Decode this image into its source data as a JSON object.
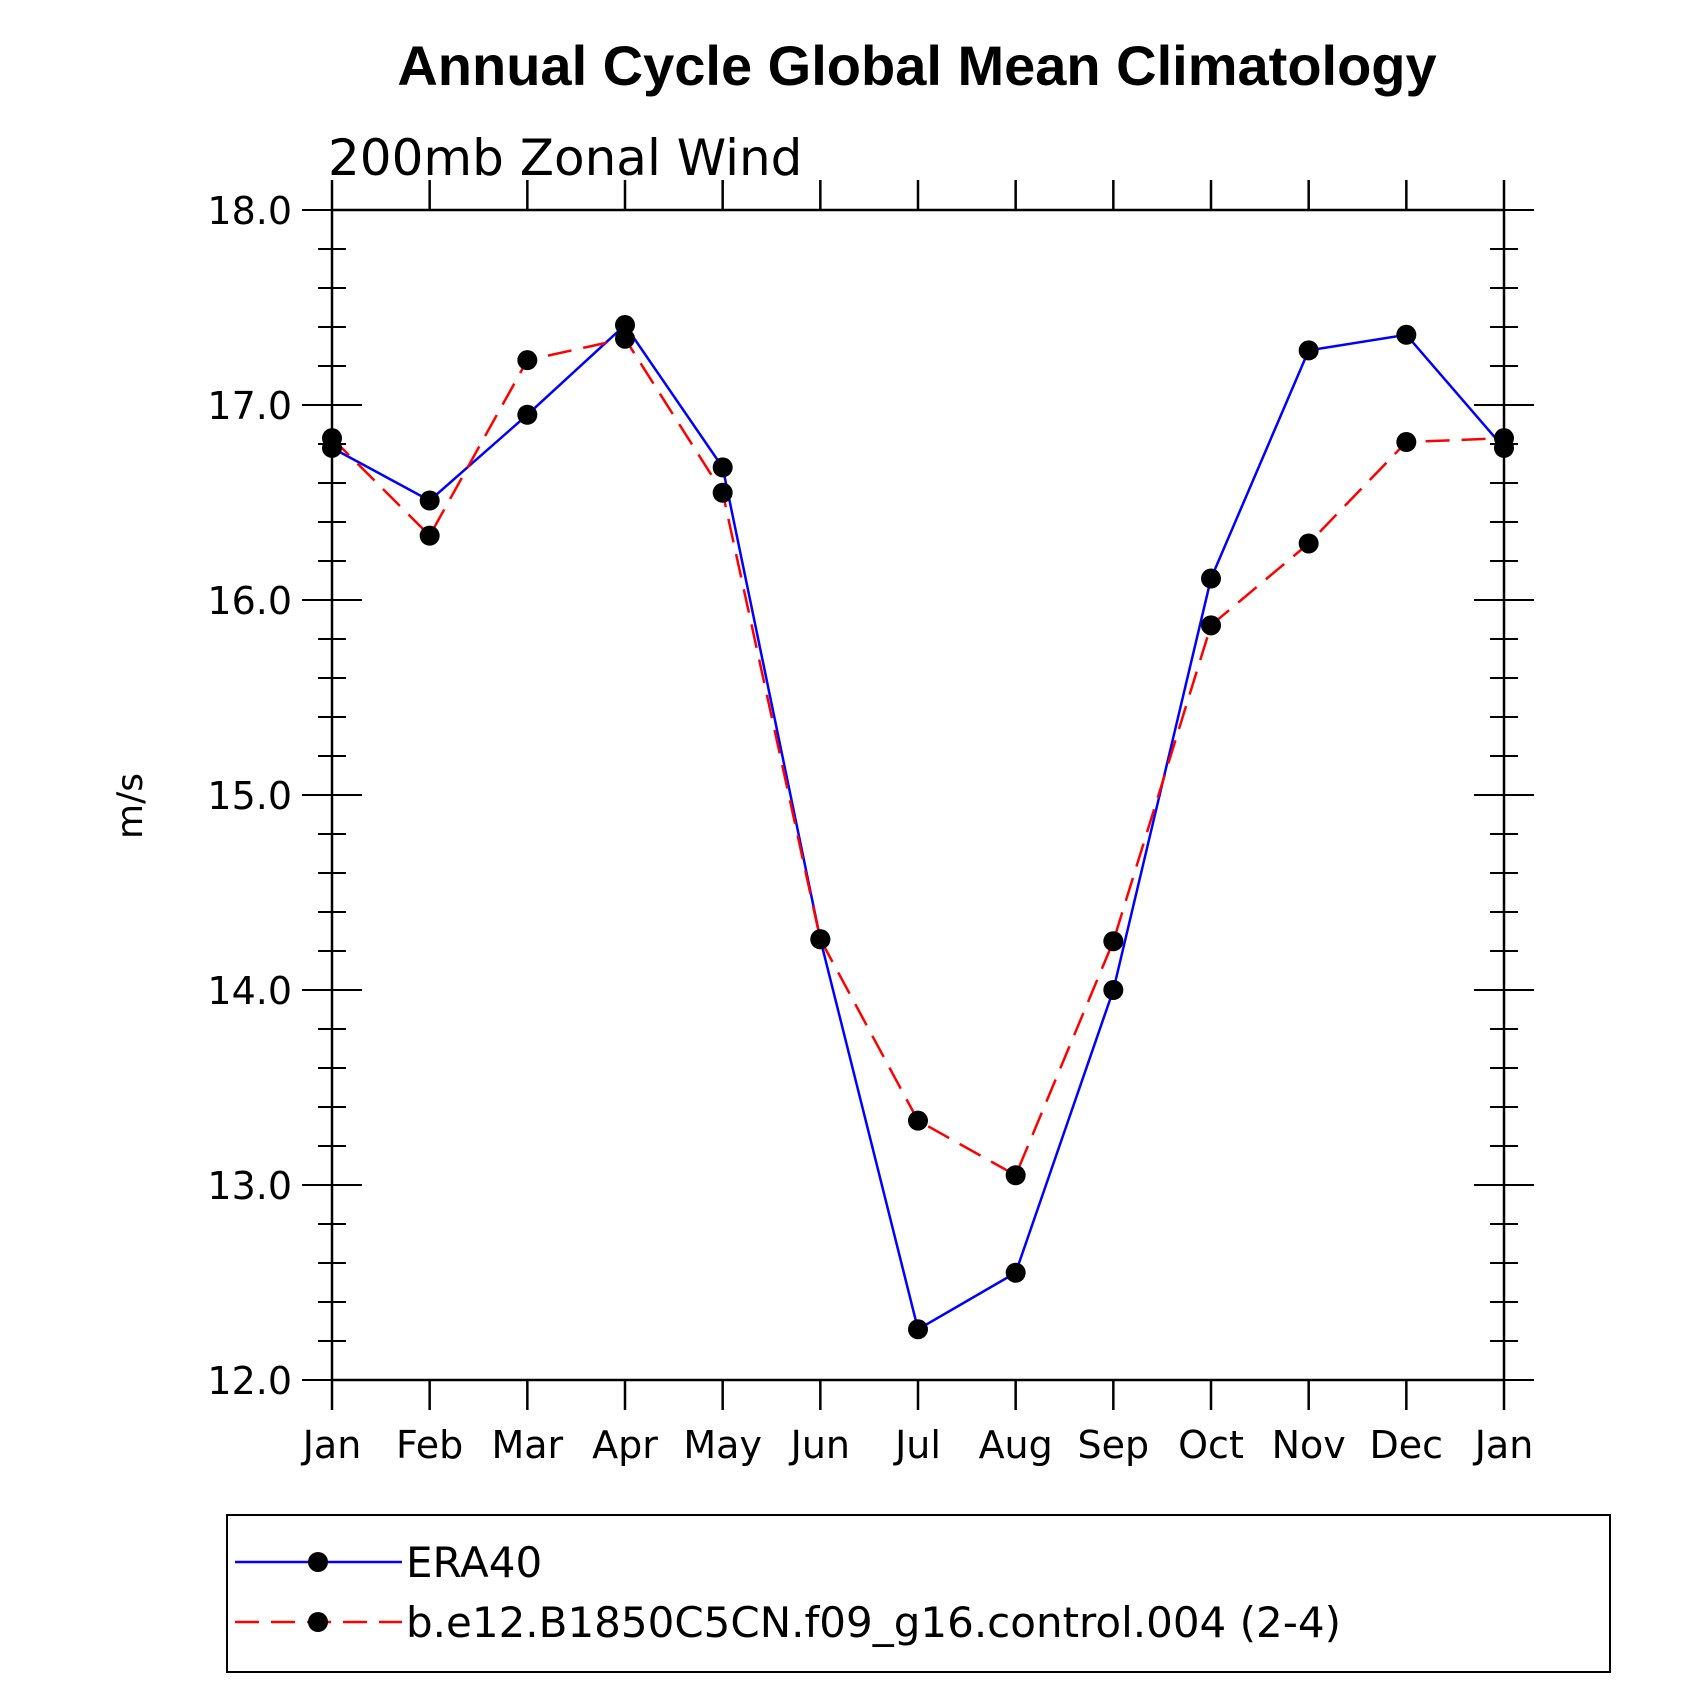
{
  "chart_data": {
    "type": "line",
    "title": "Annual Cycle Global Mean Climatology",
    "subtitle": "200mb Zonal Wind",
    "ylabel": "m/s",
    "xlabel": "",
    "ylim": [
      12.0,
      18.0
    ],
    "yticks": [
      "12.0",
      "13.0",
      "14.0",
      "15.0",
      "16.0",
      "17.0",
      "18.0"
    ],
    "categories": [
      "Jan",
      "Feb",
      "Mar",
      "Apr",
      "May",
      "Jun",
      "Jul",
      "Aug",
      "Sep",
      "Oct",
      "Nov",
      "Dec",
      "Jan"
    ],
    "series": [
      {
        "name": "ERA40",
        "color": "#0000ff",
        "dash": "solid",
        "values": [
          16.78,
          16.51,
          16.95,
          17.41,
          16.68,
          14.26,
          12.26,
          12.55,
          14.0,
          16.11,
          17.28,
          17.36,
          16.78
        ]
      },
      {
        "name": "b.e12.B1850C5CN.f09_g16.control.004 (2-4)",
        "color": "#ff0000",
        "dash": "dashed",
        "values": [
          16.83,
          16.33,
          17.23,
          17.34,
          16.55,
          14.26,
          13.33,
          13.05,
          14.25,
          15.87,
          16.29,
          16.81,
          16.83
        ]
      }
    ],
    "legend_position": "bottom"
  }
}
